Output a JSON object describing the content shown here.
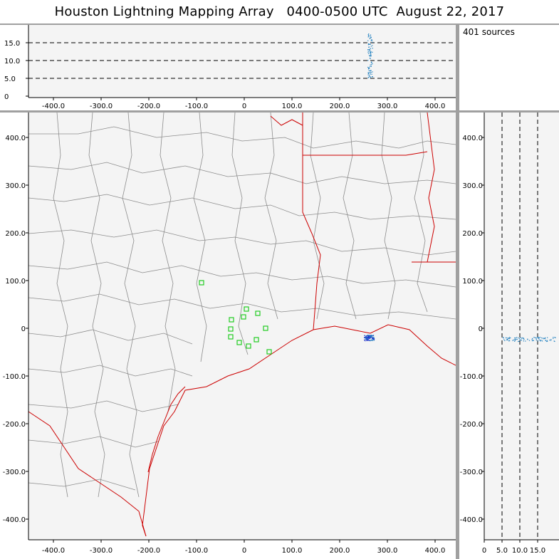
{
  "title": "Houston Lightning Mapping Array   0400-0500 UTC  August 22, 2017",
  "source_count": "401 sources",
  "top_panel": {
    "y_ticks": [
      "15.0",
      "10.0",
      "5.0",
      "0"
    ],
    "x_ticks": [
      "-400.0",
      "-300.0",
      "-200.0",
      "-100.0",
      "0",
      "100.0",
      "200.0",
      "300.0",
      "400.0"
    ]
  },
  "map_panel": {
    "y_ticks": [
      "400.0",
      "300.0",
      "200.0",
      "100.0",
      "0",
      "-100.0",
      "-200.0",
      "-300.0",
      "-400.0"
    ],
    "x_ticks": [
      "-400.0",
      "-300.0",
      "-200.0",
      "-100.0",
      "0",
      "100.0",
      "200.0",
      "300.0",
      "400.0"
    ]
  },
  "side_panel": {
    "y_ticks": [
      "400.0",
      "300.0",
      "200.0",
      "100.0",
      "0",
      "-100.0",
      "-200.0",
      "-300.0",
      "-400.0"
    ],
    "x_ticks": [
      "0",
      "5.0",
      "10.0",
      "15.0"
    ]
  },
  "colors": {
    "background": "#a0a0a0",
    "plot_bg": "#f4f4f4",
    "county_lines": "#8c8c8c",
    "state_coast": "#cc0000",
    "station": "#22cc22",
    "lightning": "#1f7fbf"
  }
}
